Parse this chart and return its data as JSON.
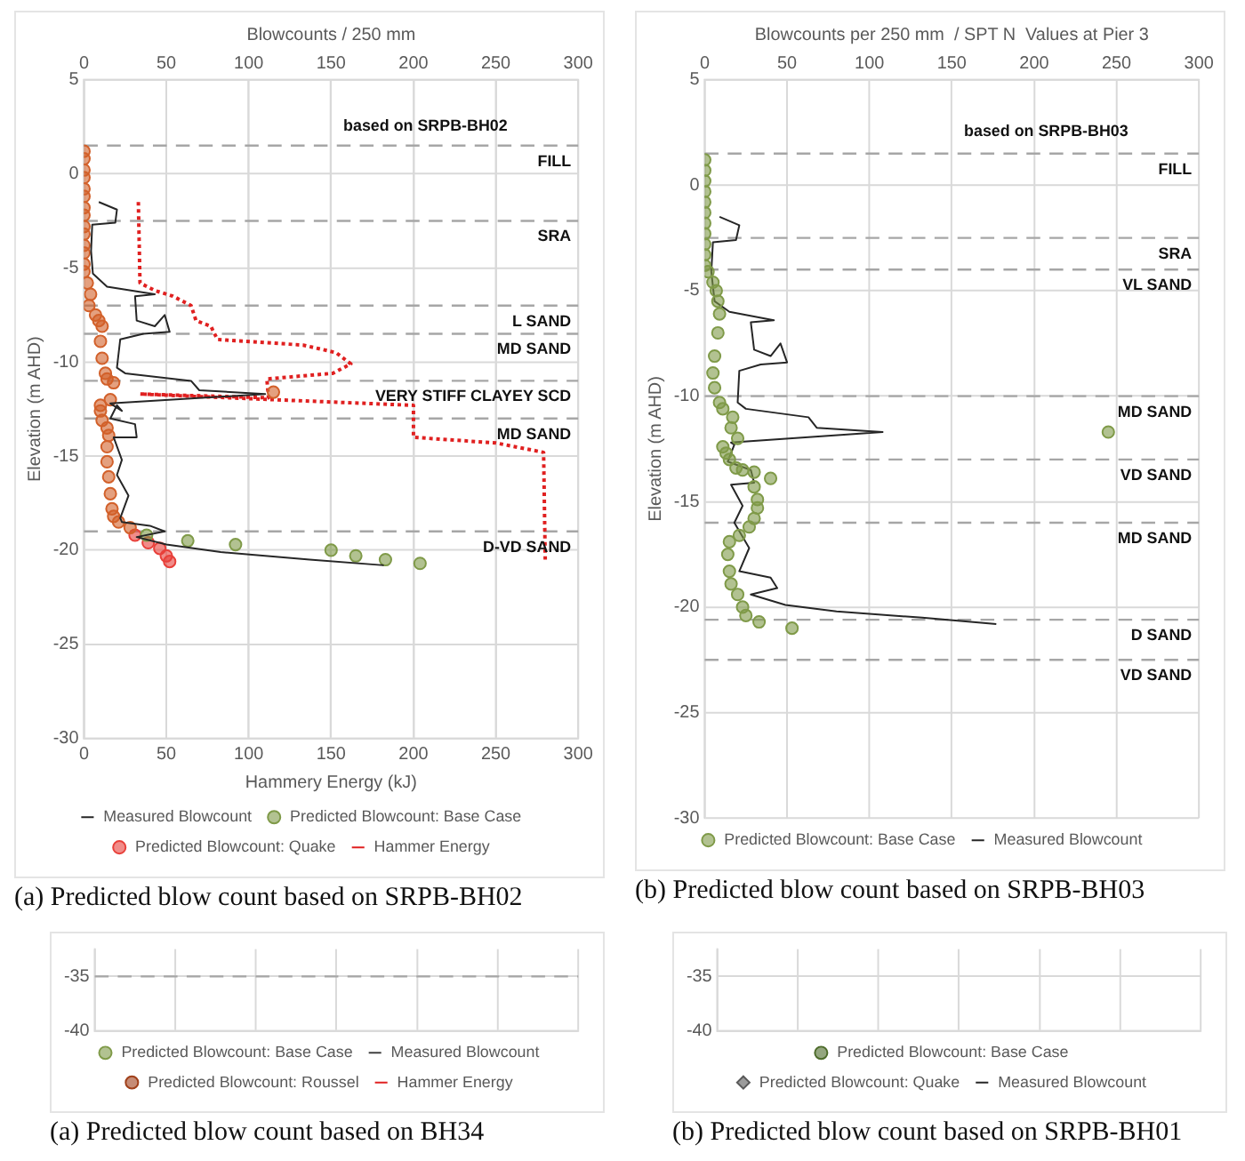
{
  "chart_data": [
    {
      "type": "line",
      "title": "(a) Predicted blow count based on SRPB-BH02",
      "x2label": "Blowcounts / 250 mm",
      "xlabel": "Hammery Energy (kJ)",
      "ylabel": "Elevation (m AHD)",
      "xlim": [
        0,
        300
      ],
      "xticks": [
        0,
        50,
        100,
        150,
        200,
        250,
        300
      ],
      "x2lim": [
        0,
        300
      ],
      "x2ticks": [
        0,
        50,
        100,
        150,
        200,
        250,
        300
      ],
      "ylim": [
        -30,
        5
      ],
      "yticks": [
        5,
        0,
        -5,
        -10,
        -15,
        -20,
        -25,
        -30
      ],
      "grid": true,
      "legend": "bottom",
      "series": [
        {
          "name": "Measured Blowcount",
          "type": "line",
          "color": "#262626",
          "line_style": "solid",
          "marker": "none",
          "x": [
            9,
            20,
            19,
            5,
            4.3,
            5.4,
            14,
            43,
            31,
            32,
            43,
            49,
            52,
            36,
            22,
            20,
            25,
            65,
            70,
            110,
            16,
            23,
            20,
            16,
            31,
            32,
            18,
            23,
            20,
            27,
            22,
            23,
            40,
            49,
            32,
            50,
            83,
            137,
            182
          ],
          "values": [
            -1.5,
            -1.9,
            -2.6,
            -2.7,
            -4.1,
            -5.3,
            -6,
            -6.4,
            -6.5,
            -7.8,
            -8.1,
            -7.5,
            -8.4,
            -8.5,
            -8.8,
            -10.3,
            -10.6,
            -11,
            -11.5,
            -11.7,
            -12.2,
            -12.6,
            -12.3,
            -13,
            -13.3,
            -14,
            -14,
            -15.2,
            -16,
            -17.1,
            -18.3,
            -18.5,
            -18.7,
            -19,
            -19.3,
            -19.7,
            -20.1,
            -20.5,
            -20.8
          ]
        },
        {
          "name": "Predicted Blowcount: Base Case",
          "type": "scatter",
          "color": "#7f9a48",
          "marker": "circle",
          "x": [
            38,
            63,
            92,
            150,
            165,
            183,
            204
          ],
          "values": [
            -19.2,
            -19.5,
            -19.7,
            -20,
            -20.3,
            -20.5,
            -20.7
          ]
        },
        {
          "type": "scatter",
          "color": "#d2602a",
          "marker": "circle",
          "x": [
            0,
            0,
            0,
            0,
            0,
            0,
            0,
            0,
            0,
            0,
            0,
            0,
            0,
            0,
            2,
            4,
            3,
            7,
            9,
            11,
            10,
            11,
            13,
            14,
            18,
            16,
            115,
            10,
            10,
            11,
            14,
            15,
            14,
            14,
            15,
            16,
            17,
            18,
            21,
            28
          ],
          "values": [
            1.2,
            0.8,
            0.2,
            -0.2,
            -0.8,
            -1.2,
            -1.8,
            -2.2,
            -2.8,
            -3.2,
            -3.8,
            -4.2,
            -4.8,
            -5.2,
            -5.8,
            -6.4,
            -7,
            -7.5,
            -7.8,
            -8.1,
            -8.9,
            -9.8,
            -10.6,
            -10.9,
            -11.1,
            -12,
            -11.6,
            -12.3,
            -12.6,
            -13.1,
            -13.5,
            -13.9,
            -14.5,
            -15.3,
            -16.1,
            -17,
            -17.8,
            -18.2,
            -18.5,
            -18.8
          ]
        },
        {
          "name": "Predicted Blowcount: Quake",
          "type": "scatter",
          "color": "#e8403a",
          "marker": "circle",
          "x": [
            31,
            39,
            46,
            50,
            52
          ],
          "values": [
            -19.2,
            -19.6,
            -19.9,
            -20.3,
            -20.6
          ]
        },
        {
          "name": "Hammer Energy",
          "type": "line",
          "color": "#e02020",
          "line_style": "dotted",
          "marker": "none",
          "x": [
            33,
            34,
            43,
            54,
            65,
            68,
            77,
            81,
            133,
            153,
            162,
            151,
            111,
            112,
            34,
            115,
            200,
            200,
            250,
            279,
            280
          ],
          "values": [
            -1.5,
            -5.8,
            -6.2,
            -6.5,
            -7,
            -7.8,
            -8.1,
            -8.8,
            -9.1,
            -9.5,
            -10.1,
            -10.6,
            -10.9,
            -11.9,
            -11.7,
            -12,
            -12.3,
            -14,
            -14.3,
            -14.8,
            -20.5
          ]
        }
      ],
      "ref_lines": [
        {
          "axis": "y",
          "value": 1.5,
          "label": "FILL",
          "color": "#a6a6a6",
          "line_style": "dashed"
        },
        {
          "axis": "y",
          "value": -2.5,
          "label": "SRA",
          "color": "#a6a6a6",
          "line_style": "dashed"
        },
        {
          "axis": "y",
          "value": -7,
          "label": "L SAND",
          "color": "#a6a6a6",
          "line_style": "dashed"
        },
        {
          "axis": "y",
          "value": -8.5,
          "label": "MD SAND",
          "color": "#a6a6a6",
          "line_style": "dashed"
        },
        {
          "axis": "y",
          "value": -11,
          "label": "VERY STIFF CLAYEY SCD",
          "color": "#a6a6a6",
          "line_style": "dashed"
        },
        {
          "axis": "y",
          "value": -13,
          "label": "MD SAND",
          "color": "#a6a6a6",
          "line_style": "dashed"
        },
        {
          "axis": "y",
          "value": -19,
          "label": "D-VD SAND",
          "color": "#a6a6a6",
          "line_style": "dashed"
        }
      ],
      "annotations": [
        "based on SRPB-BH02"
      ]
    },
    {
      "type": "line",
      "title": "(b) Predicted blow count based on SRPB-BH03",
      "xlabel": "Blowcounts per 250 mm  / SPT N  Values at Pier 3",
      "ylabel": "Elevation (m AHD)",
      "xlim": [
        0,
        300
      ],
      "xticks": [
        0,
        50,
        100,
        150,
        200,
        250,
        300
      ],
      "ylim": [
        -30,
        5
      ],
      "yticks": [
        5,
        0,
        -5,
        -10,
        -15,
        -20,
        -25,
        -30
      ],
      "grid": true,
      "legend": "bottom",
      "series": [
        {
          "name": "Predicted Blowcount: Base Case",
          "type": "scatter",
          "color": "#7f9a48",
          "marker": "circle",
          "x": [
            0,
            0,
            0,
            0,
            0,
            0,
            0,
            0,
            0,
            0,
            0,
            2,
            5,
            7,
            8,
            9,
            8,
            6,
            5,
            6,
            9,
            11,
            17,
            16,
            20,
            245,
            11,
            13,
            15,
            19,
            23,
            30,
            40,
            30,
            32,
            32,
            30,
            27,
            21,
            15,
            14,
            15,
            16,
            20,
            23,
            25,
            33,
            53
          ],
          "values": [
            1.2,
            0.7,
            0.2,
            -0.3,
            -0.8,
            -1.3,
            -1.8,
            -2.3,
            -2.8,
            -3.3,
            -3.8,
            -4.1,
            -4.6,
            -5,
            -5.5,
            -6.1,
            -7,
            -8.1,
            -8.9,
            -9.6,
            -10.3,
            -10.6,
            -11,
            -11.5,
            -12,
            -11.7,
            -12.4,
            -12.7,
            -13,
            -13.4,
            -13.5,
            -13.6,
            -13.9,
            -14.3,
            -14.9,
            -15.3,
            -15.8,
            -16.2,
            -16.6,
            -16.9,
            -17.5,
            -18.3,
            -18.9,
            -19.4,
            -20,
            -20.4,
            -20.7,
            -21
          ]
        },
        {
          "name": "Measured Blowcount",
          "type": "line",
          "color": "#262626",
          "line_style": "solid",
          "marker": "none",
          "x": [
            9,
            21,
            19,
            5,
            4,
            6,
            15,
            42,
            28,
            30,
            40,
            46,
            50,
            34,
            21,
            20,
            25,
            63,
            68,
            108,
            16,
            18,
            14,
            28,
            30,
            16,
            23,
            18,
            27,
            21,
            40,
            44,
            28,
            49,
            80,
            132,
            177
          ],
          "values": [
            -1.5,
            -1.9,
            -2.6,
            -2.7,
            -4.1,
            -5.5,
            -6,
            -6.4,
            -6.5,
            -7.8,
            -8.1,
            -7.5,
            -8.4,
            -8.5,
            -8.8,
            -10.3,
            -10.6,
            -11,
            -11.5,
            -11.7,
            -12.2,
            -12.3,
            -13.1,
            -13.5,
            -14.1,
            -14.2,
            -15.2,
            -16,
            -17.2,
            -18.3,
            -18.6,
            -19.1,
            -19.4,
            -19.9,
            -20.2,
            -20.5,
            -20.8
          ]
        }
      ],
      "ref_lines": [
        {
          "axis": "y",
          "value": 1.5,
          "label": "FILL",
          "color": "#a6a6a6",
          "line_style": "dashed"
        },
        {
          "axis": "y",
          "value": -2.5,
          "label": "SRA",
          "color": "#a6a6a6",
          "line_style": "dashed"
        },
        {
          "axis": "y",
          "value": -4,
          "label": "VL SAND",
          "color": "#a6a6a6",
          "line_style": "dashed"
        },
        {
          "axis": "y",
          "value": -10,
          "label": "MD SAND",
          "color": "#a6a6a6",
          "line_style": "dashed"
        },
        {
          "axis": "y",
          "value": -13,
          "label": "VD SAND",
          "color": "#a6a6a6",
          "line_style": "dashed"
        },
        {
          "axis": "y",
          "value": -16,
          "label": "MD SAND",
          "color": "#a6a6a6",
          "line_style": "dashed"
        },
        {
          "axis": "y",
          "value": -20.6,
          "label": "D SAND",
          "color": "#a6a6a6",
          "line_style": "dashed"
        },
        {
          "axis": "y",
          "value": -22.5,
          "label": "VD SAND",
          "color": "#a6a6a6",
          "line_style": "dashed"
        }
      ],
      "annotations": [
        "based on SRPB-BH03"
      ]
    },
    {
      "type": "line",
      "title": "(a) Predicted blow count based on BH34",
      "categories": [
        null,
        null,
        null,
        null,
        null,
        null
      ],
      "ylim": [
        -40,
        -32.5
      ],
      "yticks": [
        -35,
        -40
      ],
      "tick_labels": "y",
      "grid": true,
      "legend": "bottom",
      "series": [
        {
          "name": "Predicted Blowcount: Base Case",
          "type": "scatter",
          "color": "#7f9a48",
          "marker": "circle",
          "values": [
            null,
            null,
            null,
            null,
            null,
            null
          ]
        },
        {
          "name": "Measured Blowcount",
          "type": "line",
          "color": "#404040",
          "line_style": "solid",
          "marker": "none",
          "values": [
            null,
            null,
            null,
            null,
            null,
            null
          ]
        },
        {
          "name": "Predicted Blowcount: Roussel",
          "type": "scatter",
          "color": "#a0401a",
          "marker": "circle",
          "values": [
            null,
            null,
            null,
            null,
            null,
            null
          ]
        },
        {
          "name": "Hammer Energy",
          "type": "line",
          "color": "#e02020",
          "line_style": "dotted",
          "marker": "none",
          "values": [
            null,
            null,
            null,
            null,
            null,
            null
          ]
        }
      ],
      "ref_lines": [
        {
          "axis": "y",
          "value": -35,
          "color": "#a6a6a6",
          "line_style": "dashed"
        }
      ]
    },
    {
      "type": "line",
      "title": "(b) Predicted blow count based on SRPB-BH01",
      "categories": [
        null,
        null,
        null,
        null,
        null,
        null
      ],
      "ylim": [
        -40,
        -32.5
      ],
      "yticks": [
        -35,
        -40
      ],
      "tick_labels": "y",
      "grid": true,
      "legend": "bottom",
      "series": [
        {
          "name": "Predicted Blowcount: Base Case",
          "type": "scatter",
          "color": "#4d6b2a",
          "marker": "circle",
          "values": [
            null,
            null,
            null,
            null,
            null,
            null
          ]
        },
        {
          "name": "Predicted Blowcount: Quake",
          "type": "scatter",
          "color": "#595959",
          "marker": "diamond",
          "values": [
            null,
            null,
            null,
            null,
            null,
            null
          ]
        },
        {
          "name": "Measured Blowcount",
          "type": "line",
          "color": "#262626",
          "line_style": "solid",
          "marker": "none",
          "values": [
            null,
            null,
            null,
            null,
            null,
            null
          ]
        }
      ]
    }
  ]
}
